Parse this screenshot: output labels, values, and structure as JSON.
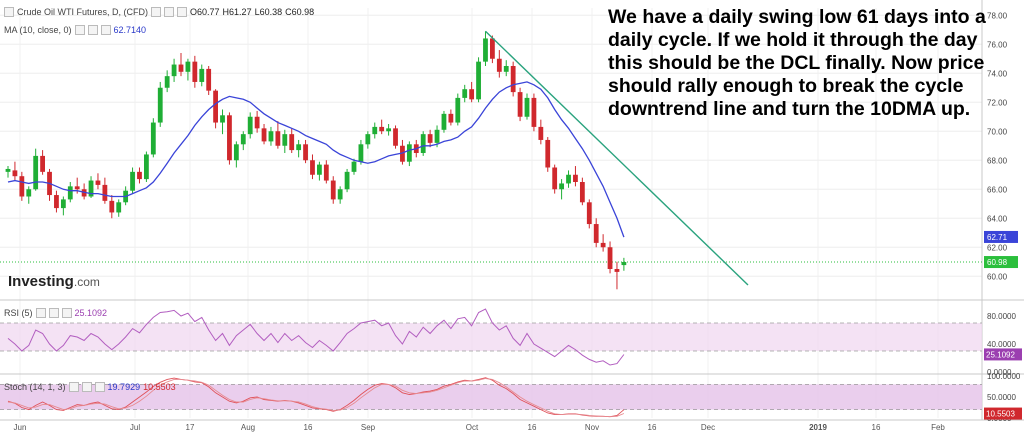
{
  "chart_data": [
    {
      "type": "candlestick",
      "title": "Crude Oil WTI Futures, D, (CFD)",
      "ohlc_label": {
        "o": "O60.77",
        "h": "H61.27",
        "l": "L60.38",
        "c": "C60.98"
      },
      "ma_label": "MA (10, close, 0)",
      "ma_value": "62.7140",
      "last_price_label": "60.98",
      "ma_last_label": "62.71",
      "ylim": [
        58.5,
        78.5
      ],
      "y_ticks": [
        "60.00",
        "62.00",
        "64.00",
        "66.00",
        "68.00",
        "70.00",
        "72.00",
        "74.00",
        "76.00",
        "78.00"
      ],
      "x_ticks": [
        "Jun",
        "Jul",
        "17",
        "Aug",
        "16",
        "Sep",
        "Oct",
        "16",
        "Nov",
        "16",
        "Dec",
        "2019",
        "16",
        "Feb"
      ],
      "candles": [
        [
          67.2,
          67.6,
          66.8,
          67.4
        ],
        [
          67.3,
          67.9,
          66.6,
          66.9
        ],
        [
          66.9,
          67.2,
          65.2,
          65.5
        ],
        [
          65.5,
          66.2,
          65.0,
          66.0
        ],
        [
          66.0,
          68.8,
          65.9,
          68.3
        ],
        [
          68.3,
          68.7,
          67.0,
          67.2
        ],
        [
          67.2,
          67.4,
          65.2,
          65.6
        ],
        [
          65.6,
          65.9,
          64.4,
          64.7
        ],
        [
          64.7,
          65.5,
          64.2,
          65.3
        ],
        [
          65.3,
          66.5,
          65.1,
          66.2
        ],
        [
          66.2,
          66.8,
          65.7,
          66.0
        ],
        [
          66.0,
          66.4,
          65.3,
          65.5
        ],
        [
          65.5,
          66.9,
          65.4,
          66.6
        ],
        [
          66.6,
          67.1,
          66.0,
          66.3
        ],
        [
          66.3,
          66.8,
          65.0,
          65.2
        ],
        [
          65.2,
          65.6,
          64.0,
          64.4
        ],
        [
          64.4,
          65.3,
          64.1,
          65.1
        ],
        [
          65.1,
          66.2,
          64.9,
          65.9
        ],
        [
          65.9,
          67.5,
          65.7,
          67.2
        ],
        [
          67.2,
          67.5,
          66.4,
          66.7
        ],
        [
          66.7,
          68.6,
          66.5,
          68.4
        ],
        [
          68.4,
          70.9,
          68.2,
          70.6
        ],
        [
          70.6,
          73.4,
          70.3,
          73.0
        ],
        [
          73.0,
          74.2,
          72.7,
          73.8
        ],
        [
          73.8,
          75.0,
          73.4,
          74.6
        ],
        [
          74.6,
          75.4,
          73.8,
          74.1
        ],
        [
          74.1,
          75.0,
          73.5,
          74.8
        ],
        [
          74.8,
          75.2,
          73.0,
          73.4
        ],
        [
          73.4,
          74.6,
          73.1,
          74.3
        ],
        [
          74.3,
          74.5,
          72.5,
          72.8
        ],
        [
          72.8,
          72.9,
          70.2,
          70.6
        ],
        [
          70.6,
          71.5,
          69.8,
          71.1
        ],
        [
          71.1,
          71.3,
          67.7,
          68.0
        ],
        [
          68.0,
          69.3,
          67.5,
          69.1
        ],
        [
          69.1,
          70.0,
          68.7,
          69.8
        ],
        [
          69.8,
          71.3,
          69.5,
          71.0
        ],
        [
          71.0,
          71.4,
          69.9,
          70.2
        ],
        [
          70.2,
          70.5,
          69.1,
          69.3
        ],
        [
          69.3,
          70.3,
          69.0,
          70.0
        ],
        [
          70.0,
          70.7,
          68.8,
          69.0
        ],
        [
          69.0,
          70.1,
          68.5,
          69.8
        ],
        [
          69.8,
          70.2,
          68.5,
          68.7
        ],
        [
          68.7,
          69.4,
          68.2,
          69.1
        ],
        [
          69.1,
          69.4,
          67.8,
          68.0
        ],
        [
          68.0,
          68.4,
          66.7,
          67.0
        ],
        [
          67.0,
          67.9,
          66.6,
          67.7
        ],
        [
          67.7,
          68.0,
          66.4,
          66.6
        ],
        [
          66.6,
          66.9,
          65.0,
          65.3
        ],
        [
          65.3,
          66.2,
          65.0,
          66.0
        ],
        [
          66.0,
          67.4,
          65.8,
          67.2
        ],
        [
          67.2,
          68.1,
          67.0,
          67.9
        ],
        [
          67.9,
          69.4,
          67.7,
          69.1
        ],
        [
          69.1,
          70.0,
          68.8,
          69.8
        ],
        [
          69.8,
          70.6,
          69.5,
          70.3
        ],
        [
          70.3,
          70.8,
          69.8,
          70.0
        ],
        [
          70.0,
          70.5,
          69.7,
          70.2
        ],
        [
          70.2,
          70.4,
          68.8,
          69.0
        ],
        [
          69.0,
          69.4,
          67.7,
          67.9
        ],
        [
          67.9,
          69.3,
          67.6,
          69.1
        ],
        [
          69.1,
          69.4,
          68.2,
          68.5
        ],
        [
          68.5,
          70.0,
          68.3,
          69.8
        ],
        [
          69.8,
          70.1,
          68.9,
          69.2
        ],
        [
          69.2,
          70.4,
          68.9,
          70.1
        ],
        [
          70.1,
          71.4,
          69.9,
          71.2
        ],
        [
          71.2,
          71.5,
          70.4,
          70.6
        ],
        [
          70.6,
          72.6,
          70.4,
          72.3
        ],
        [
          72.3,
          73.2,
          72.0,
          72.9
        ],
        [
          72.9,
          73.4,
          72.0,
          72.2
        ],
        [
          72.2,
          75.1,
          72.0,
          74.8
        ],
        [
          74.8,
          76.9,
          74.5,
          76.4
        ],
        [
          76.4,
          76.6,
          74.7,
          75.0
        ],
        [
          75.0,
          75.6,
          73.7,
          74.1
        ],
        [
          74.1,
          74.9,
          73.8,
          74.5
        ],
        [
          74.5,
          74.8,
          72.4,
          72.7
        ],
        [
          72.7,
          73.0,
          70.7,
          71.0
        ],
        [
          71.0,
          72.6,
          70.8,
          72.3
        ],
        [
          72.3,
          72.6,
          70.0,
          70.3
        ],
        [
          70.3,
          70.8,
          69.1,
          69.4
        ],
        [
          69.4,
          69.6,
          67.2,
          67.5
        ],
        [
          67.5,
          67.7,
          65.7,
          66.0
        ],
        [
          66.0,
          66.7,
          65.3,
          66.4
        ],
        [
          66.4,
          67.3,
          66.1,
          67.0
        ],
        [
          67.0,
          67.6,
          66.2,
          66.5
        ],
        [
          66.5,
          66.8,
          64.9,
          65.1
        ],
        [
          65.1,
          65.3,
          63.3,
          63.6
        ],
        [
          63.6,
          64.0,
          62.0,
          62.3
        ],
        [
          62.3,
          62.9,
          61.7,
          62.0
        ],
        [
          62.0,
          62.4,
          60.2,
          60.5
        ],
        [
          60.5,
          61.0,
          59.1,
          60.3
        ],
        [
          60.77,
          61.27,
          60.38,
          60.98
        ]
      ],
      "ma": [
        66.5,
        66.6,
        66.5,
        66.4,
        66.5,
        66.5,
        66.4,
        66.2,
        66.0,
        65.9,
        65.9,
        65.8,
        65.7,
        65.7,
        65.6,
        65.5,
        65.5,
        65.5,
        65.7,
        65.9,
        66.1,
        66.5,
        67.1,
        67.8,
        68.5,
        69.1,
        69.7,
        70.4,
        71.0,
        71.5,
        71.9,
        72.2,
        72.4,
        72.3,
        72.2,
        72.0,
        71.6,
        71.2,
        70.9,
        70.6,
        70.4,
        70.2,
        70.0,
        69.7,
        69.5,
        69.3,
        69.1,
        68.7,
        68.4,
        68.2,
        68.0,
        67.9,
        67.8,
        67.9,
        68.1,
        68.3,
        68.4,
        68.5,
        68.7,
        68.8,
        69.0,
        69.0,
        69.1,
        69.3,
        69.4,
        69.6,
        70.0,
        70.3,
        70.9,
        71.6,
        72.2,
        72.7,
        73.0,
        73.2,
        73.3,
        73.4,
        73.2,
        72.9,
        72.3,
        71.5,
        70.8,
        70.2,
        69.5,
        68.8,
        68.0,
        67.1,
        66.2,
        65.1,
        64.0,
        62.7
      ]
    },
    {
      "type": "line",
      "title": "RSI (5)",
      "value_label": "25.1092",
      "last_label": "25.1092",
      "ylim": [
        0,
        100
      ],
      "y_ticks": [
        "0.0000",
        "40.0000",
        "80.0000"
      ],
      "band": [
        30,
        70
      ],
      "values": [
        48,
        40,
        30,
        38,
        60,
        55,
        40,
        30,
        38,
        52,
        50,
        45,
        55,
        50,
        40,
        32,
        40,
        50,
        62,
        56,
        68,
        78,
        85,
        86,
        88,
        80,
        84,
        72,
        78,
        60,
        45,
        55,
        38,
        52,
        60,
        68,
        55,
        45,
        55,
        42,
        55,
        45,
        52,
        42,
        35,
        45,
        38,
        30,
        42,
        55,
        62,
        70,
        72,
        74,
        66,
        70,
        52,
        40,
        58,
        50,
        64,
        55,
        66,
        74,
        62,
        76,
        78,
        66,
        85,
        90,
        70,
        60,
        66,
        48,
        38,
        55,
        40,
        34,
        28,
        22,
        30,
        38,
        32,
        24,
        18,
        14,
        16,
        10,
        12,
        25
      ]
    },
    {
      "type": "line",
      "title": "Stoch (14, 1, 3)",
      "value_label_k": "19.7929",
      "value_label_d": "10.5503",
      "last_label": "10.5503",
      "ylim": [
        0,
        100
      ],
      "y_ticks": [
        "0.0000",
        "50.0000",
        "100.0000"
      ],
      "band": [
        20,
        80
      ],
      "k": [
        40,
        35,
        25,
        20,
        30,
        38,
        30,
        20,
        18,
        25,
        32,
        30,
        35,
        38,
        30,
        22,
        20,
        26,
        38,
        50,
        62,
        75,
        85,
        92,
        95,
        92,
        90,
        86,
        84,
        74,
        60,
        50,
        40,
        36,
        40,
        48,
        50,
        44,
        42,
        40,
        42,
        40,
        36,
        30,
        24,
        22,
        20,
        16,
        20,
        30,
        42,
        56,
        68,
        78,
        82,
        80,
        72,
        60,
        56,
        58,
        62,
        64,
        68,
        76,
        80,
        86,
        90,
        88,
        92,
        96,
        90,
        78,
        70,
        58,
        44,
        36,
        28,
        20,
        12,
        8,
        8,
        10,
        10,
        7,
        5,
        4,
        4,
        3,
        6,
        19.8
      ],
      "d": [
        38,
        36,
        30,
        24,
        26,
        32,
        32,
        26,
        20,
        22,
        28,
        30,
        33,
        35,
        33,
        27,
        22,
        24,
        30,
        40,
        52,
        66,
        78,
        86,
        92,
        92,
        90,
        88,
        85,
        78,
        66,
        54,
        44,
        38,
        38,
        44,
        48,
        46,
        43,
        41,
        41,
        40,
        38,
        33,
        27,
        23,
        21,
        18,
        19,
        25,
        35,
        48,
        60,
        72,
        80,
        80,
        76,
        66,
        60,
        58,
        60,
        62,
        66,
        72,
        78,
        84,
        88,
        88,
        90,
        94,
        92,
        84,
        74,
        62,
        50,
        40,
        32,
        24,
        16,
        10,
        8,
        9,
        9,
        8,
        6,
        5,
        4,
        3,
        4,
        10.6
      ]
    }
  ],
  "annotation": "We have a daily swing low 61 days into a daily cycle. If we hold it through the day this should be the DCL finally. Now price should rally enough to break the cycle downtrend line and turn the 10DMA up.",
  "brand": {
    "name": "Investing",
    "suffix": ".com"
  },
  "colors": {
    "up": "#1fae35",
    "down": "#d0282d",
    "ma": "#3a44d8",
    "trend": "#2aa37e",
    "rsi": "#b25ec0",
    "stoch": "#e0525a",
    "bandFill": "#f0d8f0",
    "stochFill": "#e6c6ea"
  }
}
